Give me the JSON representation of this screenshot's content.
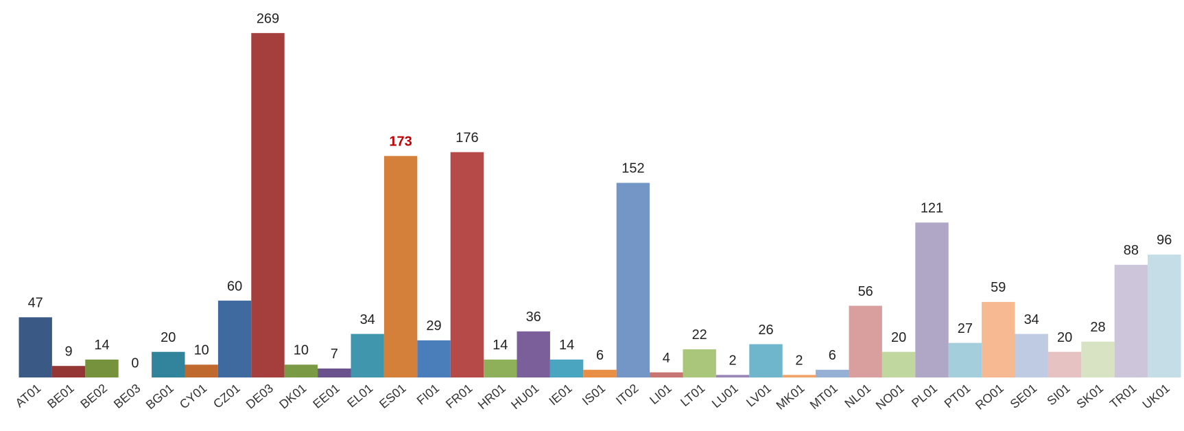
{
  "chart_data": {
    "type": "bar",
    "categories": [
      "AT01",
      "BE01",
      "BE02",
      "BE03",
      "BG01",
      "CY01",
      "CZ01",
      "DE03",
      "DK01",
      "EE01",
      "EL01",
      "ES01",
      "FI01",
      "FR01",
      "HR01",
      "HU01",
      "IE01",
      "IS01",
      "IT02",
      "LI01",
      "LT01",
      "LU01",
      "LV01",
      "MK01",
      "MT01",
      "NL01",
      "NO01",
      "PL01",
      "PT01",
      "RO01",
      "SE01",
      "SI01",
      "SK01",
      "TR01",
      "UK01"
    ],
    "values": [
      47,
      9,
      14,
      0,
      20,
      10,
      60,
      269,
      10,
      7,
      34,
      173,
      29,
      176,
      14,
      36,
      14,
      6,
      152,
      4,
      22,
      2,
      26,
      2,
      6,
      56,
      20,
      121,
      27,
      59,
      34,
      20,
      28,
      88,
      96
    ],
    "colors": [
      "#3a5a85",
      "#943634",
      "#76923c",
      "#5f497a",
      "#31849b",
      "#c0692f",
      "#3e6aa0",
      "#a43f3d",
      "#7a9a45",
      "#6a528d",
      "#3f96ad",
      "#d4803a",
      "#4a7ebb",
      "#b54a48",
      "#8fb05a",
      "#7b5f9b",
      "#4aa6c0",
      "#e88f45",
      "#7396c6",
      "#c87472",
      "#a9c67a",
      "#9a87b5",
      "#6fb5cc",
      "#f0a46a",
      "#95afd5",
      "#d89f9e",
      "#c1d7a0",
      "#b0a6c6",
      "#a5cedd",
      "#f6b992",
      "#bfcbe2",
      "#e6c3c2",
      "#d8e3c4",
      "#cdc5da",
      "#c5dde6"
    ],
    "highlight_category": "ES01",
    "highlight_color": "#c00000",
    "ylim": [
      0,
      290
    ],
    "grid": false
  }
}
